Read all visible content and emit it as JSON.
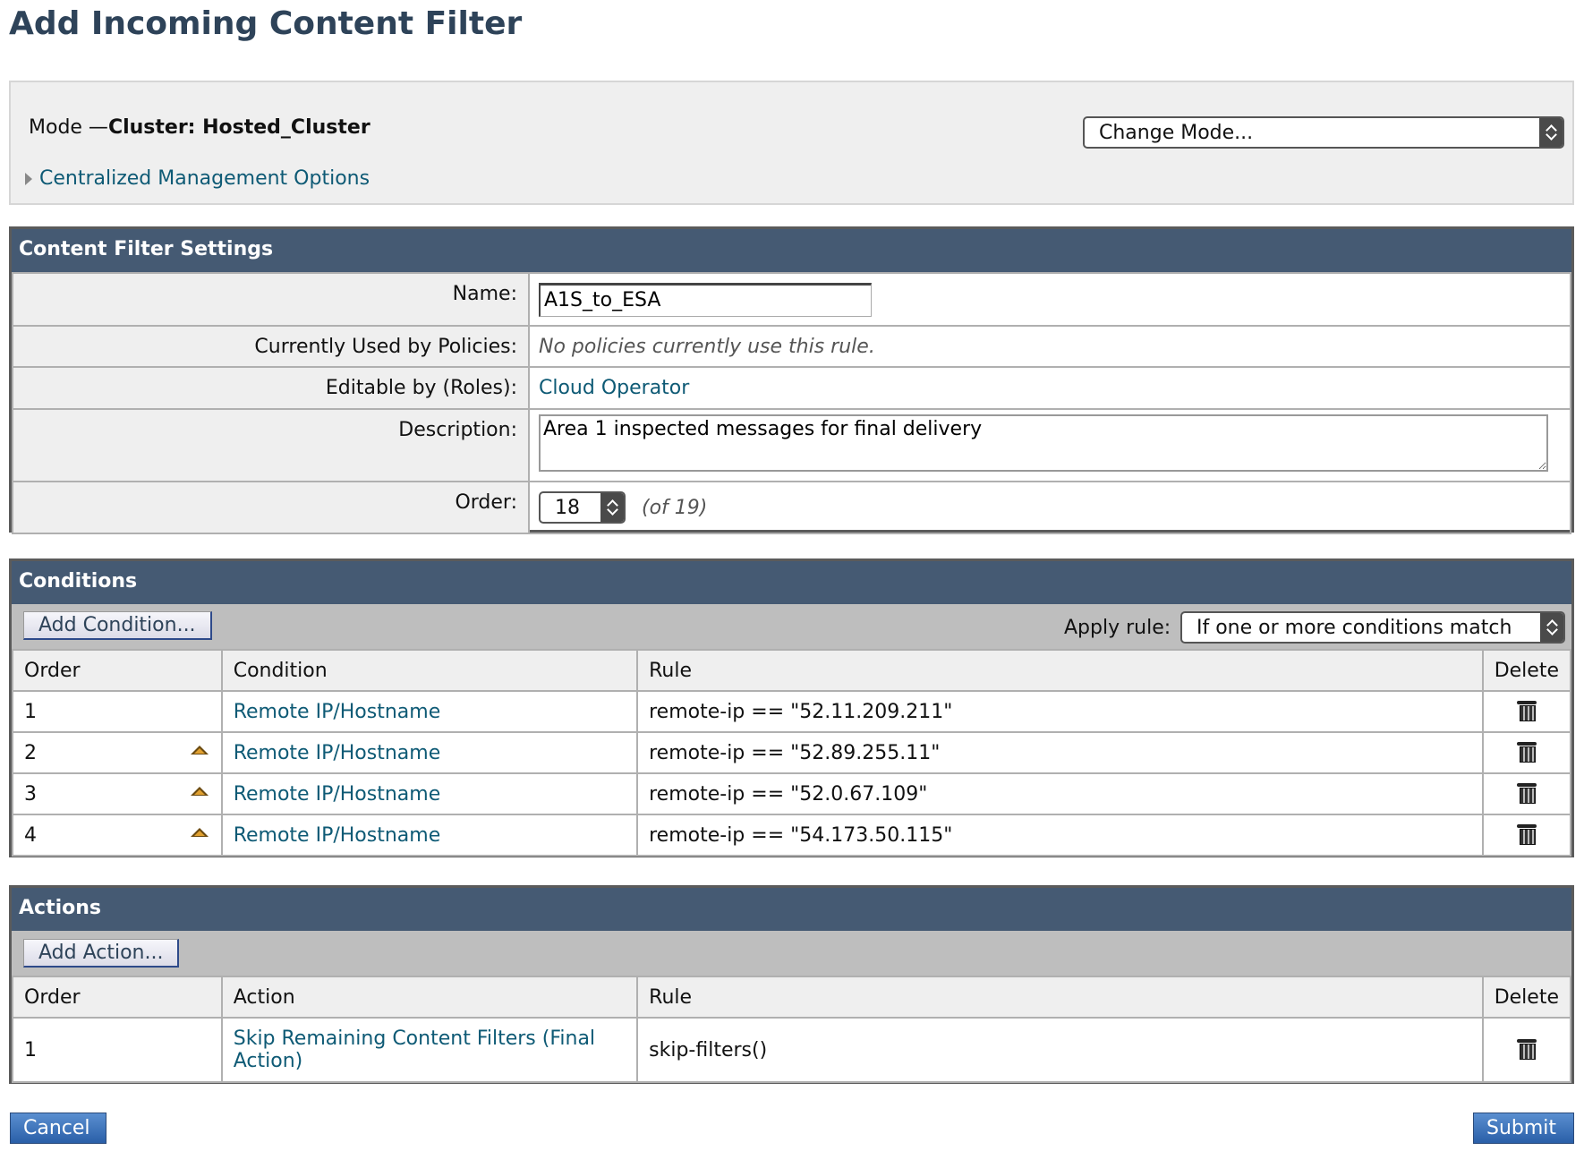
{
  "page": {
    "title": "Add Incoming Content Filter"
  },
  "mode": {
    "label": "Mode —",
    "value": "Cluster: Hosted_Cluster",
    "change_mode": "Change Mode...",
    "centralized_options": "Centralized Management Options"
  },
  "settings": {
    "header": "Content Filter Settings",
    "name_label": "Name:",
    "name_value": "A1S_to_ESA",
    "used_label": "Currently Used by Policies:",
    "used_value": "No policies currently use this rule.",
    "roles_label": "Editable by (Roles):",
    "roles_value": "Cloud Operator",
    "desc_label": "Description:",
    "desc_value": "Area 1 inspected messages for final delivery",
    "order_label": "Order:",
    "order_value": "18",
    "order_of": "(of 19)"
  },
  "conditions": {
    "header": "Conditions",
    "add_button": "Add Condition...",
    "apply_label": "Apply rule:",
    "apply_value": "If one or more conditions match",
    "columns": [
      "Order",
      "Condition",
      "Rule",
      "Delete"
    ],
    "rows": [
      {
        "order": "1",
        "condition": "Remote IP/Hostname",
        "rule": "remote-ip == \"52.11.209.211\""
      },
      {
        "order": "2",
        "condition": "Remote IP/Hostname",
        "rule": "remote-ip == \"52.89.255.11\""
      },
      {
        "order": "3",
        "condition": "Remote IP/Hostname",
        "rule": "remote-ip == \"52.0.67.109\""
      },
      {
        "order": "4",
        "condition": "Remote IP/Hostname",
        "rule": "remote-ip == \"54.173.50.115\""
      }
    ]
  },
  "actions": {
    "header": "Actions",
    "add_button": "Add Action...",
    "columns": [
      "Order",
      "Action",
      "Rule",
      "Delete"
    ],
    "rows": [
      {
        "order": "1",
        "action": "Skip Remaining Content Filters (Final Action)",
        "rule": "skip-filters()"
      }
    ]
  },
  "footer": {
    "cancel": "Cancel",
    "submit": "Submit"
  },
  "colors": {
    "header_bg": "#455a73",
    "link": "#0e5a75",
    "button_blue": "#2a5fa8"
  }
}
